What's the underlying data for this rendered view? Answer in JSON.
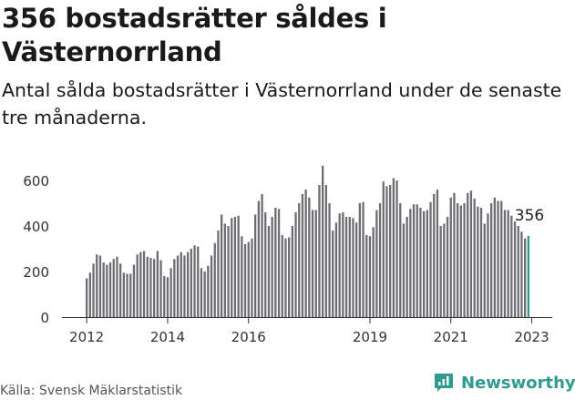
{
  "title": "356 bostadsrätter såldes i Västernorrland",
  "subtitle": "Antal sålda bostadsrätter i Västernorrland under de senaste tre månaderna.",
  "source": "Källa: Svensk Mäklarstatistik",
  "brand": "Newsworthy",
  "colors": {
    "bar": "#6e6e72",
    "highlight": "#2a9d8f",
    "brand": "#2f9a8e"
  },
  "chart_data": {
    "type": "bar",
    "title": "356 bostadsrätter såldes i Västernorrland",
    "subtitle": "Antal sålda bostadsrätter i Västernorrland under de senaste tre månaderna.",
    "xlabel": "",
    "ylabel": "",
    "ylim": [
      0,
      680
    ],
    "yticks": [
      0,
      200,
      400,
      600
    ],
    "xtick_labels": [
      "2012",
      "2014",
      "2016",
      "2019",
      "2021",
      "2023"
    ],
    "grid": false,
    "highlight_label": "356",
    "start_month": "2012-01",
    "series": [
      {
        "values": [
          170,
          195,
          235,
          275,
          270,
          240,
          230,
          240,
          255,
          265,
          235,
          195,
          190,
          190,
          230,
          275,
          285,
          290,
          265,
          260,
          255,
          290,
          250,
          180,
          175,
          215,
          255,
          270,
          285,
          270,
          285,
          300,
          315,
          310,
          215,
          200,
          225,
          270,
          325,
          380,
          450,
          410,
          400,
          435,
          440,
          445,
          355,
          320,
          330,
          345,
          450,
          510,
          540,
          460,
          400,
          440,
          480,
          475,
          360,
          345,
          350,
          400,
          460,
          500,
          540,
          560,
          525,
          470,
          470,
          580,
          665,
          580,
          500,
          380,
          415,
          455,
          460,
          440,
          440,
          435,
          415,
          500,
          505,
          360,
          355,
          395,
          470,
          500,
          595,
          575,
          580,
          610,
          600,
          500,
          410,
          440,
          475,
          495,
          495,
          480,
          465,
          470,
          505,
          540,
          560,
          400,
          410,
          440,
          525,
          545,
          500,
          490,
          500,
          545,
          555,
          520,
          485,
          480,
          410,
          455,
          500,
          525,
          510,
          510,
          470,
          470,
          445,
          420,
          400,
          375,
          345,
          356
        ],
        "highlight_last": true
      }
    ]
  }
}
